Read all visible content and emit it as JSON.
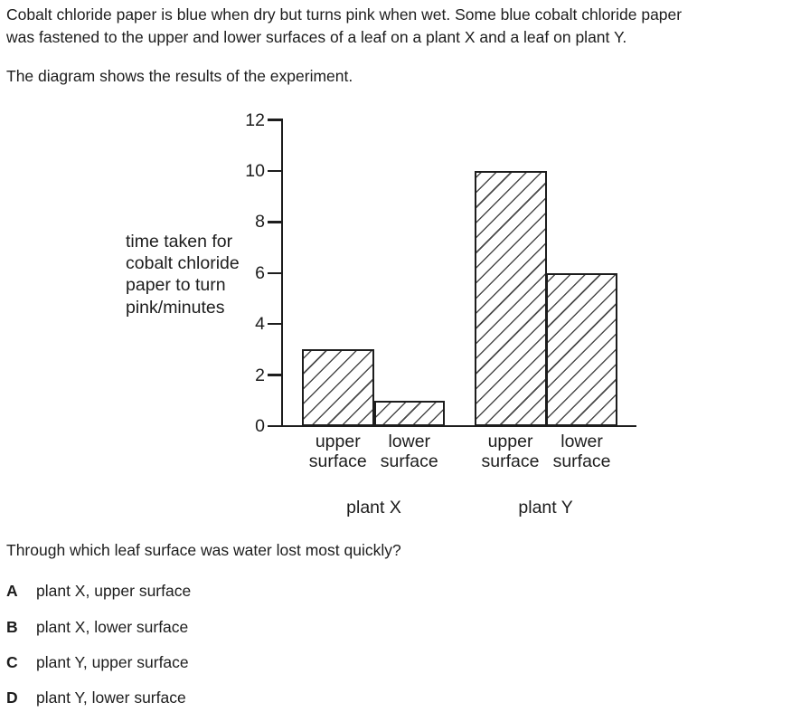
{
  "colors": {
    "ink": "#1d1d1d",
    "paper": "#ffffff",
    "hatch_line": "#4a4a4a"
  },
  "page": {
    "intro": "Cobalt chloride paper is blue when dry but turns pink when wet. Some blue cobalt chloride paper\nwas fastened to the upper and lower surfaces of a leaf on a plant X and a leaf on plant Y.",
    "diagram_caption": "The diagram shows the results of the experiment.",
    "question": "Through which leaf surface was water lost most quickly?",
    "options": [
      {
        "letter": "A",
        "text": "plant X, upper surface"
      },
      {
        "letter": "B",
        "text": "plant X, lower surface"
      },
      {
        "letter": "C",
        "text": "plant Y, upper surface"
      },
      {
        "letter": "D",
        "text": "plant Y, lower surface"
      }
    ]
  },
  "chart_data": {
    "type": "bar",
    "title": "",
    "xlabel": "",
    "ylabel": "time taken for\ncobalt chloride\npaper to turn\npink/minutes",
    "ylim": [
      0,
      12
    ],
    "y_ticks": [
      0,
      2,
      4,
      6,
      8,
      10,
      12
    ],
    "grid": false,
    "bar_fill": "white with black diagonal hatch lines",
    "categories": [
      "plant X upper surface",
      "plant X lower surface",
      "plant Y upper surface",
      "plant Y lower surface"
    ],
    "values": [
      3,
      1,
      10,
      6
    ],
    "groups": [
      {
        "label": "plant X",
        "bars": [
          {
            "label": "upper\nsurface",
            "value": 3
          },
          {
            "label": "lower\nsurface",
            "value": 1
          }
        ]
      },
      {
        "label": "plant Y",
        "bars": [
          {
            "label": "upper\nsurface",
            "value": 10
          },
          {
            "label": "lower\nsurface",
            "value": 6
          }
        ]
      }
    ]
  }
}
